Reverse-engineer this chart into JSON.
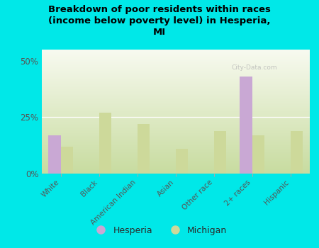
{
  "title": "Breakdown of poor residents within races\n(income below poverty level) in Hesperia,\nMI",
  "categories": [
    "White",
    "Black",
    "American Indian",
    "Asian",
    "Other race",
    "2+ races",
    "Hispanic"
  ],
  "hesperia_values": [
    17,
    0,
    0,
    0,
    0,
    43,
    0
  ],
  "michigan_values": [
    12,
    27,
    22,
    11,
    19,
    17,
    19
  ],
  "hesperia_color": "#c9a8d4",
  "michigan_color": "#cdd99a",
  "background_color": "#00e8e8",
  "yticks": [
    0,
    25,
    50
  ],
  "ylim": [
    0,
    55
  ],
  "watermark": "City-Data.com",
  "legend_hesperia": "Hesperia",
  "legend_michigan": "Michigan",
  "bar_width": 0.32
}
